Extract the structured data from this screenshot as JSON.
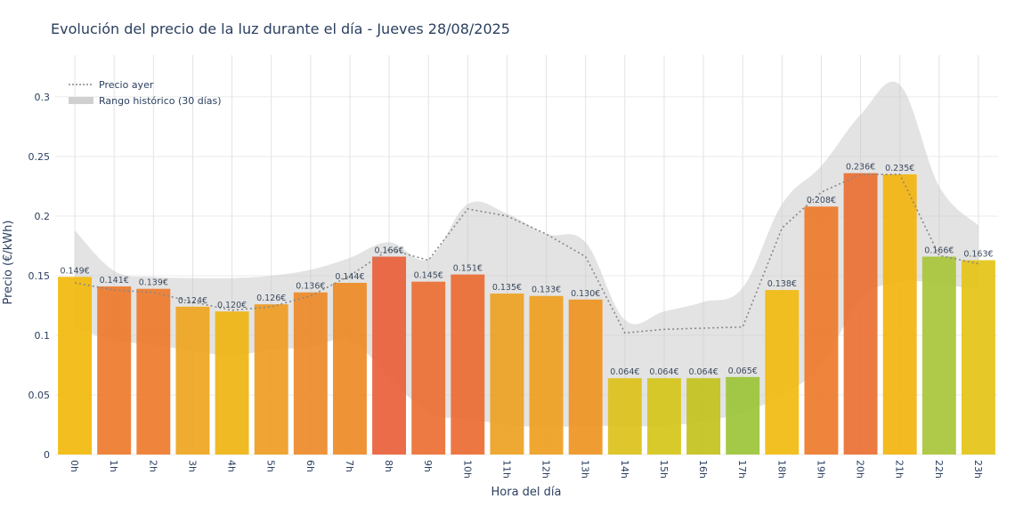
{
  "chart_data": {
    "type": "bar",
    "title": "Evolución del precio de la luz durante el día - Jueves 28/08/2025",
    "xlabel": "Hora del día",
    "ylabel": "Precio (€/kWh)",
    "ylim": [
      0,
      0.335
    ],
    "yticks": [
      0,
      0.05,
      0.1,
      0.15,
      0.2,
      0.25,
      0.3
    ],
    "ytick_labels": [
      "0",
      "0.05",
      "0.1",
      "0.15",
      "0.2",
      "0.25",
      "0.3"
    ],
    "grid": true,
    "legend_position": "top-left",
    "categories": [
      "0h",
      "1h",
      "2h",
      "3h",
      "4h",
      "5h",
      "6h",
      "7h",
      "8h",
      "9h",
      "10h",
      "11h",
      "12h",
      "13h",
      "14h",
      "15h",
      "16h",
      "17h",
      "18h",
      "19h",
      "20h",
      "21h",
      "22h",
      "23h"
    ],
    "series": [
      {
        "kind": "bar",
        "values": [
          0.149,
          0.141,
          0.139,
          0.124,
          0.12,
          0.126,
          0.136,
          0.144,
          0.166,
          0.145,
          0.151,
          0.135,
          0.133,
          0.13,
          0.064,
          0.064,
          0.064,
          0.065,
          0.138,
          0.208,
          0.236,
          0.235,
          0.166,
          0.163
        ],
        "labels": [
          "0.149€",
          "0.141€",
          "0.139€",
          "0.124€",
          "0.120€",
          "0.126€",
          "0.136€",
          "0.144€",
          "0.166€",
          "0.145€",
          "0.151€",
          "0.135€",
          "0.133€",
          "0.130€",
          "0.064€",
          "0.064€",
          "0.064€",
          "0.065€",
          "0.138€",
          "0.208€",
          "0.236€",
          "0.235€",
          "0.166€",
          "0.163€"
        ],
        "colors": [
          "#f2b90c",
          "#ee7a2d",
          "#ee7b2c",
          "#eea51e",
          "#efb412",
          "#ee9c22",
          "#ed8a28",
          "#ee8a26",
          "#e8603a",
          "#ec6f32",
          "#ec6b33",
          "#eca222",
          "#eea020",
          "#ee9422",
          "#dcc11a",
          "#d6c61a",
          "#c4c21d",
          "#9cc43a",
          "#f2bb10",
          "#ee7a2c",
          "#ea6f33",
          "#f2b40e",
          "#a8c538",
          "#e4c416"
        ]
      },
      {
        "kind": "line",
        "name": "Precio ayer",
        "color": "#888888",
        "values": [
          0.144,
          0.138,
          0.136,
          0.128,
          0.121,
          0.124,
          0.133,
          0.15,
          0.172,
          0.163,
          0.206,
          0.2,
          0.185,
          0.166,
          0.102,
          0.105,
          0.106,
          0.107,
          0.19,
          0.22,
          0.235,
          0.235,
          0.167,
          0.16
        ]
      },
      {
        "kind": "band",
        "name": "Rango histórico (30 días)",
        "color": "#c8c8c8",
        "lower": [
          0.106,
          0.096,
          0.092,
          0.087,
          0.083,
          0.088,
          0.09,
          0.096,
          0.065,
          0.035,
          0.03,
          0.025,
          0.023,
          0.024,
          0.024,
          0.024,
          0.028,
          0.035,
          0.05,
          0.075,
          0.13,
          0.145,
          0.143,
          0.138
        ],
        "upper": [
          0.188,
          0.154,
          0.149,
          0.148,
          0.148,
          0.15,
          0.155,
          0.165,
          0.178,
          0.164,
          0.21,
          0.202,
          0.185,
          0.178,
          0.113,
          0.12,
          0.128,
          0.14,
          0.21,
          0.242,
          0.285,
          0.31,
          0.225,
          0.192
        ]
      }
    ]
  }
}
